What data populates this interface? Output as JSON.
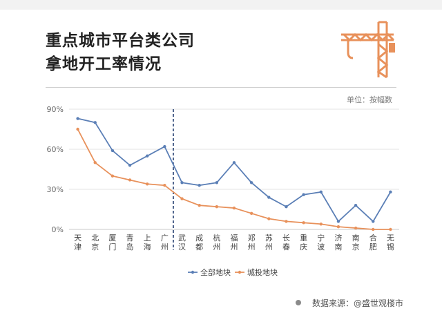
{
  "title_lines": [
    "重点城市平台类公司",
    "拿地开工率情况"
  ],
  "unit_label": "单位：按幅数",
  "footer": "数据来源：@盛世观楼市",
  "icon": "crane-icon",
  "colors": {
    "all": "#5b7fb6",
    "chengtou": "#e8915b",
    "divider": "#1f3b6e"
  },
  "chart_data": {
    "type": "line",
    "categories": [
      "天津",
      "北京",
      "厦门",
      "青岛",
      "上海",
      "广州",
      "武汉",
      "成都",
      "杭州",
      "福州",
      "郑州",
      "苏州",
      "长春",
      "重庆",
      "宁波",
      "济南",
      "南京",
      "合肥",
      "无锡"
    ],
    "series": [
      {
        "name": "全部地块",
        "values": [
          83,
          80,
          59,
          48,
          55,
          62,
          35,
          33,
          35,
          50,
          35,
          24,
          17,
          26,
          28,
          6,
          18,
          6,
          28
        ]
      },
      {
        "name": "城投地块",
        "values": [
          75,
          50,
          40,
          37,
          34,
          33,
          23,
          18,
          17,
          16,
          12,
          8,
          6,
          5,
          4,
          2,
          1,
          0,
          0
        ]
      }
    ],
    "y_ticks": [
      "90%",
      "60%",
      "30%",
      "0%"
    ],
    "ylim": [
      0,
      90
    ],
    "divider_after": "广州",
    "legend_position": "bottom",
    "grid": true
  }
}
